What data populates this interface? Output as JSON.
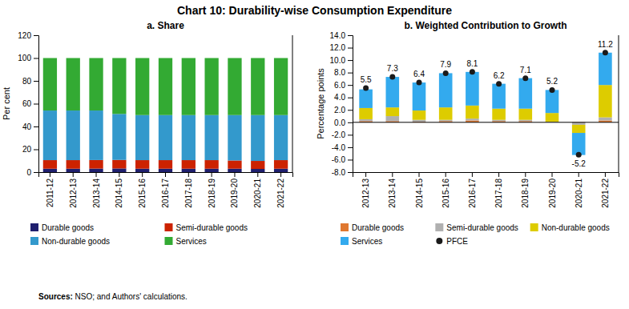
{
  "title": "Chart 10: Durability-wise Consumption Expenditure",
  "annotations": [
    "Sources:",
    " NSO; and Authors' calculations."
  ],
  "chart_data": [
    {
      "type": "bar",
      "title": "a. Share",
      "ylabel": "Per cent",
      "stacked": true,
      "legend": "bottom",
      "categories": [
        "2011-12",
        "2012-13",
        "2013-14",
        "2014-15",
        "2015-16",
        "2016-17",
        "2017-18",
        "2018-19",
        "2019-20",
        "2020-21",
        "2021-22"
      ],
      "series": [
        {
          "name": "Durable goods",
          "color": "#1f1f6e",
          "values": [
            3.0,
            3.0,
            3.1,
            3.2,
            3.0,
            3.0,
            3.0,
            3.0,
            3.0,
            2.8,
            3.0
          ]
        },
        {
          "name": "Semi-durable goods",
          "color": "#cc2200",
          "values": [
            7.5,
            7.5,
            7.5,
            7.5,
            7.5,
            7.5,
            7.5,
            7.5,
            7.2,
            7.0,
            7.5
          ]
        },
        {
          "name": "Non-durable goods",
          "color": "#3399cc",
          "values": [
            43.5,
            43.5,
            43.4,
            40.3,
            39.5,
            39.5,
            39.5,
            39.5,
            39.8,
            40.2,
            39.5
          ]
        },
        {
          "name": "Services",
          "color": "#33aa33",
          "values": [
            46.0,
            46.0,
            46.0,
            49.0,
            50.0,
            50.0,
            50.0,
            50.0,
            50.0,
            50.0,
            50.0
          ]
        }
      ],
      "ylim": [
        0,
        120
      ],
      "yticks": [
        0,
        20,
        40,
        60,
        80,
        100,
        120
      ]
    },
    {
      "type": "bar",
      "title": "b. Weighted Contribution to Growth",
      "ylabel": "Percentage points",
      "stacked": true,
      "legend": "bottom",
      "categories": [
        "2012-13",
        "2013-14",
        "2014-15",
        "2015-16",
        "2016-17",
        "2017-18",
        "2018-19",
        "2019-20",
        "2020-21",
        "2021-22"
      ],
      "series": [
        {
          "name": "Durable goods",
          "type": "bar",
          "color": "#e07830",
          "values": [
            0.2,
            0.2,
            0.1,
            0.2,
            0.3,
            0.2,
            0.2,
            0.0,
            0.05,
            0.3
          ]
        },
        {
          "name": "Semi-durable goods",
          "type": "bar",
          "color": "#b0b0b0",
          "values": [
            0.3,
            0.8,
            0.3,
            0.2,
            0.3,
            0.2,
            0.2,
            0.1,
            -0.4,
            0.5
          ]
        },
        {
          "name": "Non-durable goods",
          "type": "bar",
          "color": "#ddcc00",
          "values": [
            1.8,
            1.4,
            1.5,
            2.0,
            2.1,
            1.8,
            1.8,
            1.4,
            -1.3,
            5.2
          ]
        },
        {
          "name": "Services",
          "type": "bar",
          "color": "#33aaee",
          "values": [
            3.0,
            4.9,
            4.5,
            5.5,
            5.4,
            4.0,
            4.9,
            3.7,
            -3.55,
            5.2
          ]
        },
        {
          "name": "PFCE",
          "type": "scatter",
          "marker": "circle",
          "color": "#1a1a1a",
          "data_labels": true,
          "values": [
            5.5,
            7.3,
            6.4,
            7.9,
            8.1,
            6.2,
            7.1,
            5.2,
            -5.2,
            11.2
          ]
        }
      ],
      "ylim": [
        -8.0,
        14.0
      ],
      "yticks": [
        {
          "value": -8.0,
          "label": "-8.0"
        },
        {
          "value": -6.0,
          "label": "-6.0"
        },
        {
          "value": -4.0,
          "label": "-4.0"
        },
        {
          "value": -2.0,
          "label": "-2.0"
        },
        {
          "value": 0.0,
          "label": "0.0"
        },
        {
          "value": 2.0,
          "label": "2.0"
        },
        {
          "value": 4.0,
          "label": "4.0"
        },
        {
          "value": 6.0,
          "label": "6.0"
        },
        {
          "value": 8.0,
          "label": "8.0"
        },
        {
          "value": 10.0,
          "label": "10.0"
        },
        {
          "value": 12.0,
          "label": "12.0"
        },
        {
          "value": 14.0,
          "label": "14.0"
        }
      ]
    }
  ]
}
